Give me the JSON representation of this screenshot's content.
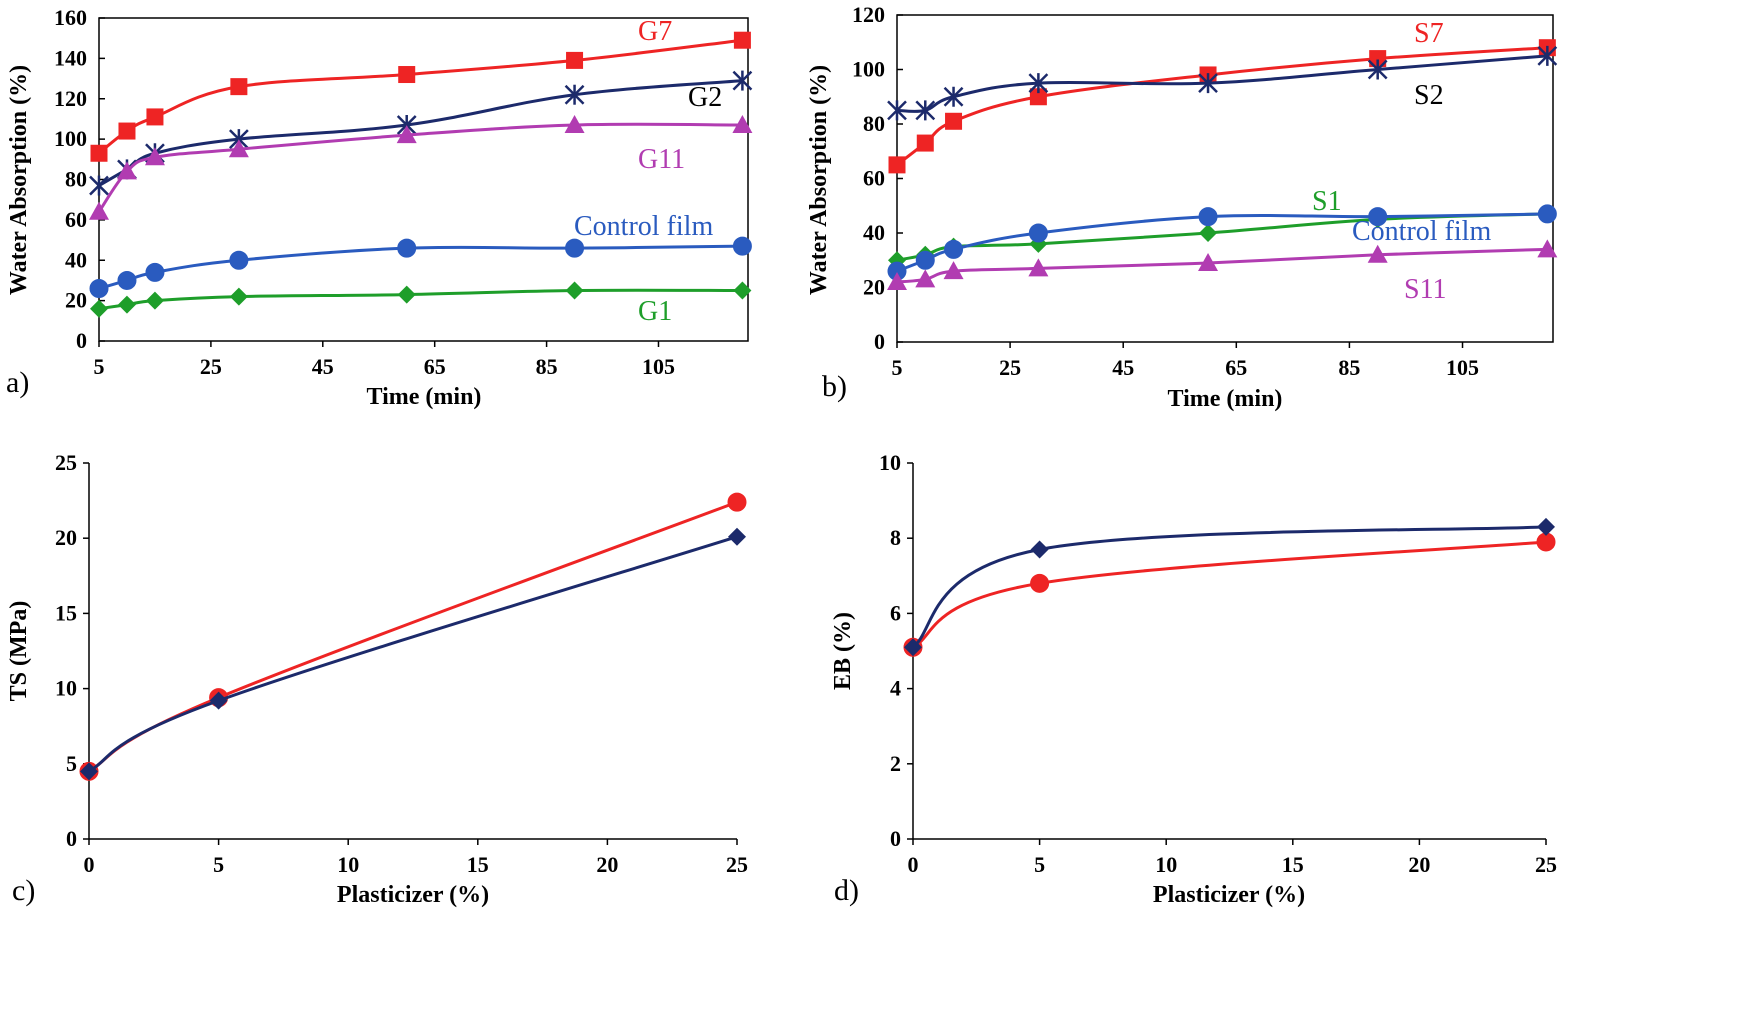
{
  "chart_data": [
    {
      "panel": "a)",
      "type": "line",
      "xlabel": "Time (min)",
      "ylabel": "Water Absorption (%)",
      "xlim": [
        5,
        121
      ],
      "ylim": [
        0,
        160
      ],
      "xticks": [
        5,
        25,
        45,
        65,
        85,
        105
      ],
      "yticks": [
        0,
        20,
        40,
        60,
        80,
        100,
        120,
        140,
        160
      ],
      "series": [
        {
          "name": "G7",
          "color": "#ee2424",
          "marker": "square",
          "x": [
            5,
            10,
            15,
            30,
            60,
            90,
            120
          ],
          "y": [
            93,
            104,
            111,
            126,
            132,
            139,
            149
          ]
        },
        {
          "name": "G2",
          "color": "#1c2a6b",
          "marker": "star",
          "x": [
            5,
            10,
            15,
            30,
            60,
            90,
            120
          ],
          "y": [
            77,
            85,
            93,
            100,
            107,
            122,
            129
          ]
        },
        {
          "name": "G11",
          "color": "#b13cb1",
          "marker": "triangle",
          "x": [
            5,
            10,
            15,
            30,
            60,
            90,
            120
          ],
          "y": [
            64,
            84,
            91,
            95,
            102,
            107,
            107
          ]
        },
        {
          "name": "Control film",
          "color": "#2a5bbf",
          "marker": "circle",
          "x": [
            5,
            10,
            15,
            30,
            60,
            90,
            120
          ],
          "y": [
            26,
            30,
            34,
            40,
            46,
            46,
            47
          ]
        },
        {
          "name": "G1",
          "color": "#1e9e2a",
          "marker": "diamond",
          "x": [
            5,
            10,
            15,
            30,
            60,
            90,
            120
          ],
          "y": [
            16,
            18,
            20,
            22,
            23,
            25,
            25
          ]
        }
      ]
    },
    {
      "panel": "b)",
      "type": "line",
      "xlabel": "Time (min)",
      "ylabel": "Water Absorption (%)",
      "xlim": [
        5,
        121
      ],
      "ylim": [
        0,
        120
      ],
      "xticks": [
        5,
        25,
        45,
        65,
        85,
        105
      ],
      "yticks": [
        0,
        20,
        40,
        60,
        80,
        100,
        120
      ],
      "series": [
        {
          "name": "S7",
          "color": "#ee2424",
          "marker": "square",
          "x": [
            5,
            10,
            15,
            30,
            60,
            90,
            120
          ],
          "y": [
            65,
            73,
            81,
            90,
            98,
            104,
            108
          ]
        },
        {
          "name": "S2",
          "color": "#1c2a6b",
          "marker": "star",
          "x": [
            5,
            10,
            15,
            30,
            60,
            90,
            120
          ],
          "y": [
            85,
            85,
            90,
            95,
            95,
            100,
            105
          ]
        },
        {
          "name": "S1",
          "color": "#1e9e2a",
          "marker": "diamond",
          "x": [
            5,
            10,
            15,
            30,
            60,
            90,
            120
          ],
          "y": [
            30,
            32,
            35,
            36,
            40,
            45,
            47
          ]
        },
        {
          "name": "Control film",
          "color": "#2a5bbf",
          "marker": "circle",
          "x": [
            5,
            10,
            15,
            30,
            60,
            90,
            120
          ],
          "y": [
            26,
            30,
            34,
            40,
            46,
            46,
            47
          ]
        },
        {
          "name": "S11",
          "color": "#b13cb1",
          "marker": "triangle",
          "x": [
            5,
            10,
            15,
            30,
            60,
            90,
            120
          ],
          "y": [
            22,
            23,
            26,
            27,
            29,
            32,
            34
          ]
        }
      ]
    },
    {
      "panel": "c)",
      "type": "line",
      "xlabel": "Plasticizer (%)",
      "ylabel": "TS (MPa)",
      "xlim": [
        0,
        25
      ],
      "ylim": [
        0,
        25
      ],
      "xticks": [
        0,
        5,
        10,
        15,
        20,
        25
      ],
      "yticks": [
        0,
        5,
        10,
        15,
        20,
        25
      ],
      "series": [
        {
          "name": "red series",
          "color": "#ee2424",
          "marker": "circle",
          "x": [
            0,
            5,
            25
          ],
          "y": [
            4.5,
            9.4,
            22.4
          ]
        },
        {
          "name": "navy series",
          "color": "#1c2a6b",
          "marker": "diamond",
          "x": [
            0,
            5,
            25
          ],
          "y": [
            4.5,
            9.2,
            20.1
          ]
        }
      ]
    },
    {
      "panel": "d)",
      "type": "line",
      "xlabel": "Plasticizer (%)",
      "ylabel": "EB (%)",
      "xlim": [
        0,
        25
      ],
      "ylim": [
        0,
        10
      ],
      "xticks": [
        0,
        5,
        10,
        15,
        20,
        25
      ],
      "yticks": [
        0,
        2,
        4,
        6,
        8,
        10
      ],
      "series": [
        {
          "name": "red series",
          "color": "#ee2424",
          "marker": "circle",
          "x": [
            0,
            5,
            25
          ],
          "y": [
            5.1,
            6.8,
            7.9
          ]
        },
        {
          "name": "navy series",
          "color": "#1c2a6b",
          "marker": "diamond",
          "x": [
            0,
            5,
            25
          ],
          "y": [
            5.1,
            7.7,
            8.3
          ]
        }
      ]
    }
  ]
}
